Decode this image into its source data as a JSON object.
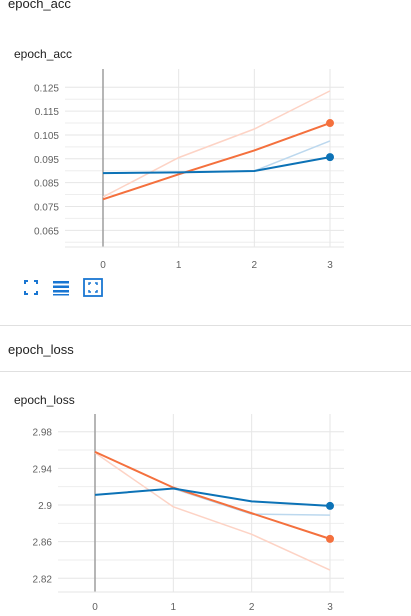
{
  "sections": [
    {
      "title": "epoch_acc",
      "chart_title": "epoch_acc"
    },
    {
      "title": "epoch_loss",
      "chart_title": "epoch_loss"
    }
  ],
  "toolbar": {
    "icons": [
      "fullscreen-icon",
      "data-table-icon",
      "fit-domain-icon"
    ]
  },
  "colors": {
    "orange": "#f4703d",
    "blue": "#0c72b6",
    "orange_raw": "#fdd3c5",
    "blue_raw": "#bcd8ee"
  },
  "chart_data": [
    {
      "type": "line",
      "title": "epoch_acc",
      "x": [
        0,
        1,
        2,
        3
      ],
      "ylim": [
        0.058,
        0.131
      ],
      "yticks": [
        "0.125",
        "0.115",
        "0.105",
        "0.095",
        "0.085",
        "0.075",
        "0.065"
      ],
      "ytick_values": [
        0.125,
        0.115,
        0.105,
        0.095,
        0.085,
        0.075,
        0.065
      ],
      "xticks": [
        "0",
        "1",
        "2",
        "3"
      ],
      "series": [
        {
          "color": "#f4703d",
          "raw_color": "#fdd3c5",
          "values": [
            0.078,
            0.0885,
            0.0985,
            0.11
          ],
          "raw_values": [
            0.079,
            0.0955,
            0.1075,
            0.1235
          ]
        },
        {
          "color": "#0c72b6",
          "raw_color": "#bcd8ee",
          "values": [
            0.089,
            0.0893,
            0.0899,
            0.0957
          ],
          "raw_values": [
            0.089,
            0.0893,
            0.0899,
            0.1025
          ]
        }
      ]
    },
    {
      "type": "line",
      "title": "epoch_loss",
      "x": [
        0,
        1,
        2,
        3
      ],
      "ylim": [
        2.805,
        2.995
      ],
      "yticks": [
        "2.98",
        "2.94",
        "2.9",
        "2.86",
        "2.82"
      ],
      "ytick_values": [
        2.98,
        2.94,
        2.9,
        2.86,
        2.82
      ],
      "xticks": [
        "0",
        "1",
        "2",
        "3"
      ],
      "series": [
        {
          "color": "#f4703d",
          "raw_color": "#fdd3c5",
          "values": [
            2.958,
            2.919,
            2.891,
            2.863
          ],
          "raw_values": [
            2.957,
            2.898,
            2.868,
            2.829
          ]
        },
        {
          "color": "#0c72b6",
          "raw_color": "#bcd8ee",
          "values": [
            2.911,
            2.918,
            2.904,
            2.899
          ],
          "raw_values": [
            2.911,
            2.918,
            2.89,
            2.889
          ]
        }
      ]
    }
  ]
}
